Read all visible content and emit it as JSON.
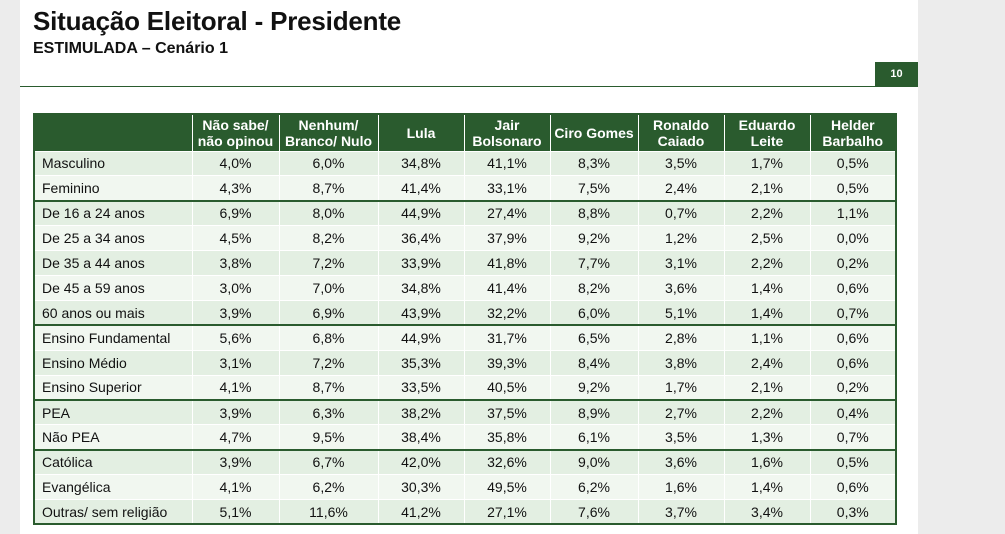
{
  "header": {
    "title": "Situação Eleitoral - Presidente",
    "subtitle": "ESTIMULADA – Cenário 1",
    "page_number": "10"
  },
  "colors": {
    "accent": "#2a5b2e",
    "row_odd": "#e3efe2",
    "row_even": "#f1f7f0"
  },
  "chart_data": {
    "type": "table",
    "columns": [
      "",
      "Não sabe/ não opinou",
      "Nenhum/ Branco/ Nulo",
      "Lula",
      "Jair Bolsonaro",
      "Ciro Gomes",
      "Ronaldo Caiado",
      "Eduardo Leite",
      "Helder Barbalho"
    ],
    "groups": [
      {
        "rows": [
          {
            "label": "Masculino",
            "values": [
              "4,0%",
              "6,0%",
              "34,8%",
              "41,1%",
              "8,3%",
              "3,5%",
              "1,7%",
              "0,5%"
            ]
          },
          {
            "label": "Feminino",
            "values": [
              "4,3%",
              "8,7%",
              "41,4%",
              "33,1%",
              "7,5%",
              "2,4%",
              "2,1%",
              "0,5%"
            ]
          }
        ]
      },
      {
        "rows": [
          {
            "label": "De 16 a 24 anos",
            "values": [
              "6,9%",
              "8,0%",
              "44,9%",
              "27,4%",
              "8,8%",
              "0,7%",
              "2,2%",
              "1,1%"
            ]
          },
          {
            "label": "De 25 a 34 anos",
            "values": [
              "4,5%",
              "8,2%",
              "36,4%",
              "37,9%",
              "9,2%",
              "1,2%",
              "2,5%",
              "0,0%"
            ]
          },
          {
            "label": "De 35 a 44 anos",
            "values": [
              "3,8%",
              "7,2%",
              "33,9%",
              "41,8%",
              "7,7%",
              "3,1%",
              "2,2%",
              "0,2%"
            ]
          },
          {
            "label": "De 45 a 59 anos",
            "values": [
              "3,0%",
              "7,0%",
              "34,8%",
              "41,4%",
              "8,2%",
              "3,6%",
              "1,4%",
              "0,6%"
            ]
          },
          {
            "label": "60 anos ou mais",
            "values": [
              "3,9%",
              "6,9%",
              "43,9%",
              "32,2%",
              "6,0%",
              "5,1%",
              "1,4%",
              "0,7%"
            ]
          }
        ]
      },
      {
        "rows": [
          {
            "label": "Ensino Fundamental",
            "values": [
              "5,6%",
              "6,8%",
              "44,9%",
              "31,7%",
              "6,5%",
              "2,8%",
              "1,1%",
              "0,6%"
            ]
          },
          {
            "label": "Ensino Médio",
            "values": [
              "3,1%",
              "7,2%",
              "35,3%",
              "39,3%",
              "8,4%",
              "3,8%",
              "2,4%",
              "0,6%"
            ]
          },
          {
            "label": "Ensino Superior",
            "values": [
              "4,1%",
              "8,7%",
              "33,5%",
              "40,5%",
              "9,2%",
              "1,7%",
              "2,1%",
              "0,2%"
            ]
          }
        ]
      },
      {
        "rows": [
          {
            "label": " PEA",
            "values": [
              "3,9%",
              "6,3%",
              "38,2%",
              "37,5%",
              "8,9%",
              "2,7%",
              "2,2%",
              "0,4%"
            ]
          },
          {
            "label": " Não PEA",
            "values": [
              "4,7%",
              "9,5%",
              "38,4%",
              "35,8%",
              "6,1%",
              "3,5%",
              "1,3%",
              "0,7%"
            ]
          }
        ]
      },
      {
        "rows": [
          {
            "label": "Católica",
            "values": [
              "3,9%",
              "6,7%",
              "42,0%",
              "32,6%",
              "9,0%",
              "3,6%",
              "1,6%",
              "0,5%"
            ]
          },
          {
            "label": "Evangélica",
            "values": [
              "4,1%",
              "6,2%",
              "30,3%",
              "49,5%",
              "6,2%",
              "1,6%",
              "1,4%",
              "0,6%"
            ]
          },
          {
            "label": "Outras/ sem religião",
            "values": [
              "5,1%",
              "11,6%",
              "41,2%",
              "27,1%",
              "7,6%",
              "3,7%",
              "3,4%",
              "0,3%"
            ]
          }
        ]
      }
    ]
  }
}
